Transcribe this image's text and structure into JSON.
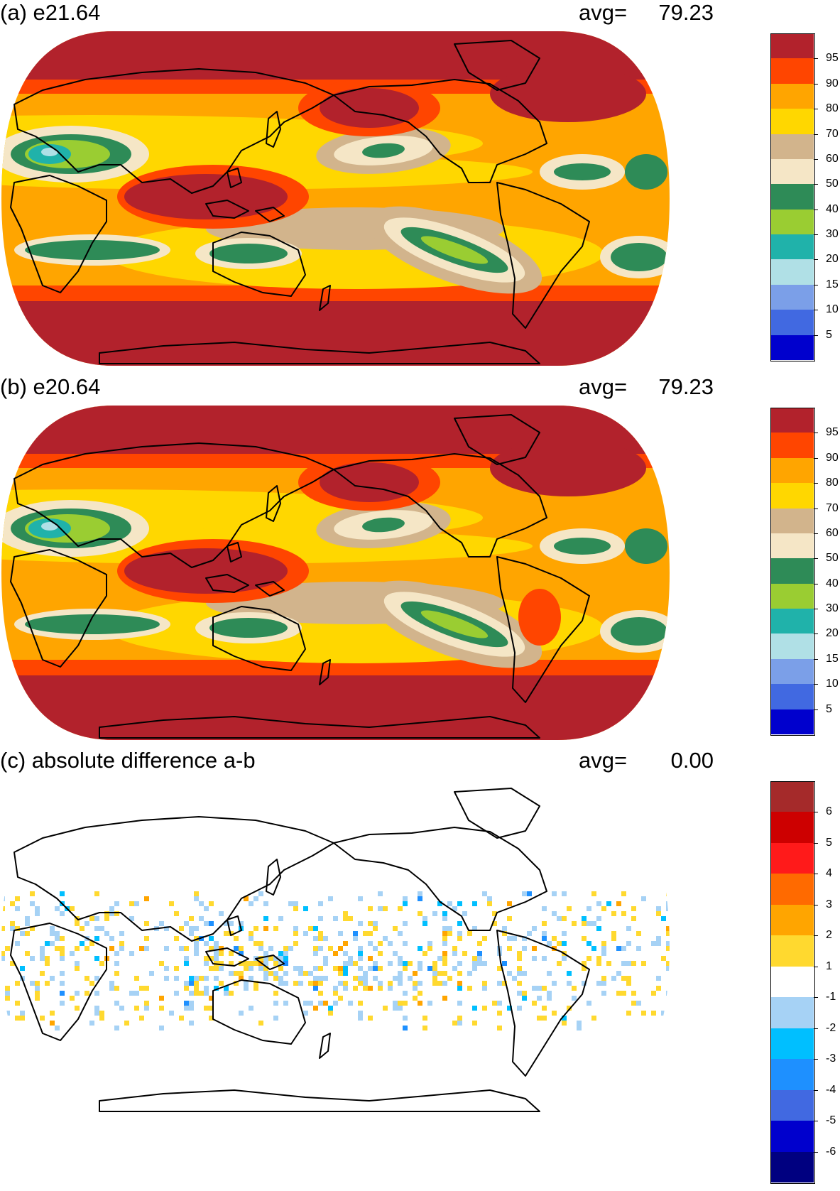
{
  "panels": [
    {
      "id": "a",
      "title": "(a) e21.64",
      "avg_label": "avg=",
      "avg_value": "79.23",
      "colorbar": {
        "colors": [
          "#b2222c",
          "#ff4500",
          "#ffa500",
          "#ffd700",
          "#d2b48c",
          "#f5e6c6",
          "#2e8b57",
          "#9acd32",
          "#20b2aa",
          "#b0e0e6",
          "#7b9fe8",
          "#4169e1",
          "#0000cd"
        ],
        "labels": [
          "95",
          "90",
          "80",
          "70",
          "60",
          "50",
          "40",
          "30",
          "20",
          "15",
          "10",
          "5"
        ]
      }
    },
    {
      "id": "b",
      "title": "(b) e20.64",
      "avg_label": "avg=",
      "avg_value": "79.23",
      "colorbar": {
        "colors": [
          "#b2222c",
          "#ff4500",
          "#ffa500",
          "#ffd700",
          "#d2b48c",
          "#f5e6c6",
          "#2e8b57",
          "#9acd32",
          "#20b2aa",
          "#b0e0e6",
          "#7b9fe8",
          "#4169e1",
          "#0000cd"
        ],
        "labels": [
          "95",
          "90",
          "80",
          "70",
          "60",
          "50",
          "40",
          "30",
          "20",
          "15",
          "10",
          "5"
        ]
      }
    },
    {
      "id": "c",
      "title": "(c) absolute difference a-b",
      "avg_label": "avg=",
      "avg_value": "0.00",
      "colorbar": {
        "colors": [
          "#a52a2a",
          "#cd0000",
          "#ff1a1a",
          "#ff6a00",
          "#ffa500",
          "#ffd92f",
          "#ffffff",
          "#a6d2f5",
          "#00bfff",
          "#1e90ff",
          "#4169e1",
          "#0000cd",
          "#000080"
        ],
        "labels": [
          "6",
          "5",
          "4",
          "3",
          "2",
          "1",
          "-1",
          "-2",
          "-3",
          "-4",
          "-5",
          "-6"
        ]
      }
    }
  ]
}
